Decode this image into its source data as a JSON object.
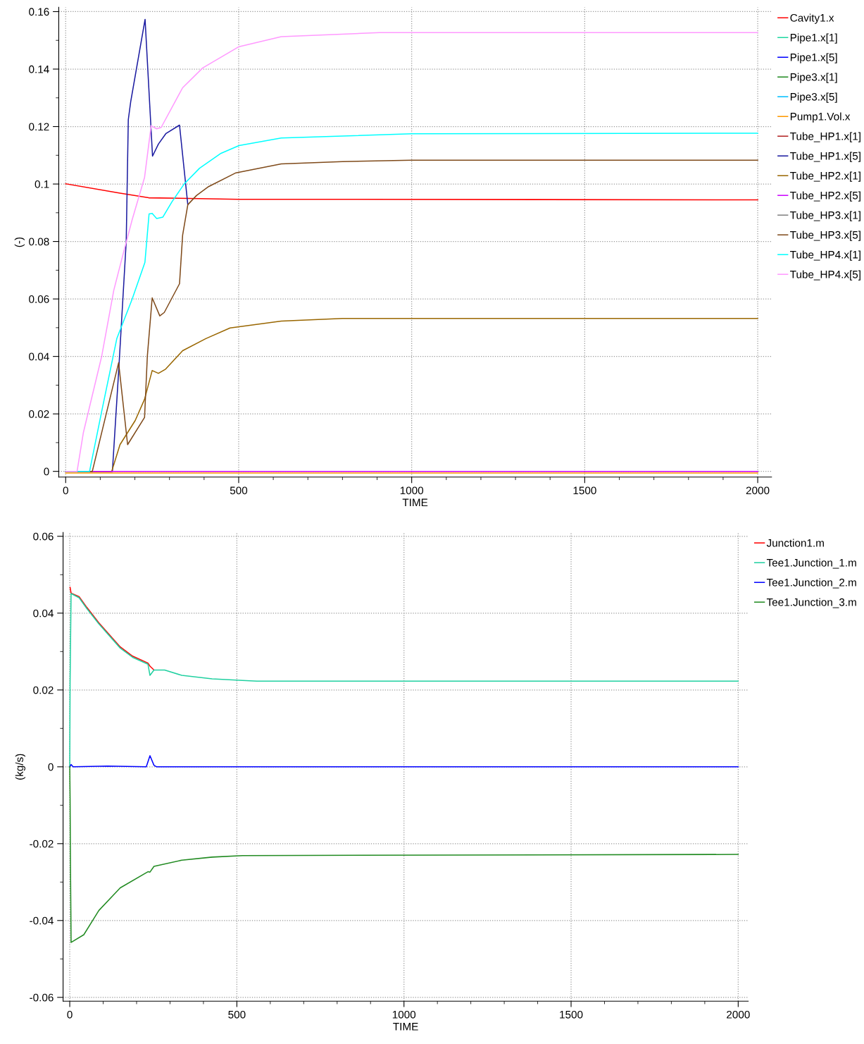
{
  "chart_data": [
    {
      "type": "line",
      "ylabel": "(-)",
      "xlabel": "TIME",
      "xlim": [
        -20,
        2040
      ],
      "ylim": [
        -0.002,
        0.1615
      ],
      "xticks": [
        0,
        500,
        1000,
        1500,
        2000
      ],
      "yticks": [
        0,
        0.02,
        0.04,
        0.06,
        0.08,
        0.1,
        0.12,
        0.14,
        0.16
      ],
      "grid": true,
      "legend": "right",
      "line_style": "solid",
      "marker": "none",
      "series": [
        {
          "name": "Cavity1.x",
          "color": "#ff0000",
          "x": [
            0,
            157,
            240,
            501,
            2000
          ],
          "values": [
            0.1001,
            0.0968,
            0.0952,
            0.0947,
            0.0945
          ]
        },
        {
          "name": "Pipe1.x[1]",
          "color": "#1ed7a0"
        },
        {
          "name": "Pipe1.x[5]",
          "color": "#0000ff"
        },
        {
          "name": "Pipe3.x[1]",
          "color": "#228b22"
        },
        {
          "name": "Pipe3.x[5]",
          "color": "#00bfff"
        },
        {
          "name": "Pump1.Vol.x",
          "color": "#ff9900",
          "x": [
            0,
            2000
          ],
          "values": [
            -0.0006,
            -0.0006
          ]
        },
        {
          "name": "Tube_HP1.x[1]",
          "color": "#b22222"
        },
        {
          "name": "Tube_HP1.x[5]",
          "color": "#1a1aa0",
          "x": [
            0,
            135,
            153,
            175,
            181,
            188,
            229.5,
            251,
            268,
            290,
            329,
            353
          ],
          "values": [
            0,
            0,
            0.0346,
            0.08,
            0.1224,
            0.1287,
            0.1573,
            0.1097,
            0.1139,
            0.1176,
            0.1205,
            0.0928
          ]
        },
        {
          "name": "Tube_HP2.x[1]",
          "color": "#996600",
          "x": [
            0,
            133,
            157,
            201,
            228,
            250,
            268,
            289,
            338,
            405,
            475,
            623,
            800,
            2000
          ],
          "values": [
            0,
            0,
            0.0093,
            0.0177,
            0.0251,
            0.0351,
            0.0341,
            0.0356,
            0.042,
            0.0462,
            0.0499,
            0.0523,
            0.0532,
            0.0532
          ]
        },
        {
          "name": "Tube_HP2.x[5]",
          "color": "#cc00ff",
          "x": [
            0,
            2000
          ],
          "values": [
            0,
            0
          ]
        },
        {
          "name": "Tube_HP3.x[1]",
          "color": "#808080"
        },
        {
          "name": "Tube_HP3.x[5]",
          "color": "#7f4a1a",
          "x": [
            0,
            77,
            153,
            179,
            228,
            236,
            250,
            272,
            285,
            329,
            338,
            353,
            378,
            413,
            492,
            623,
            800,
            1000,
            2000
          ],
          "values": [
            0,
            0,
            0.0378,
            0.0093,
            0.0188,
            0.04,
            0.0604,
            0.0541,
            0.0553,
            0.0653,
            0.0822,
            0.0928,
            0.096,
            0.0991,
            0.1039,
            0.107,
            0.1078,
            0.1083,
            0.1083
          ]
        },
        {
          "name": "Tube_HP4.x[1]",
          "color": "#00ffff",
          "x": [
            0,
            69,
            104,
            148,
            192,
            229,
            241,
            250,
            263,
            281,
            307,
            343,
            387,
            449,
            501,
            623,
            1000,
            2000
          ],
          "values": [
            0,
            0,
            0.0208,
            0.0463,
            0.0599,
            0.0727,
            0.0896,
            0.0898,
            0.088,
            0.0885,
            0.0938,
            0.1001,
            0.1055,
            0.1107,
            0.1134,
            0.116,
            0.1175,
            0.1177
          ]
        },
        {
          "name": "Tube_HP4.x[5]",
          "color": "#ff99ff",
          "x": [
            0,
            33,
            51,
            104,
            139,
            162,
            192,
            228,
            247,
            263,
            276,
            338,
            396,
            501,
            623,
            907,
            2000
          ],
          "values": [
            0,
            0,
            0.0134,
            0.04,
            0.063,
            0.0738,
            0.0875,
            0.1023,
            0.1203,
            0.1192,
            0.1197,
            0.1335,
            0.1404,
            0.1478,
            0.1513,
            0.1527,
            0.1527
          ]
        }
      ]
    },
    {
      "type": "line",
      "ylabel": "(kg/s)",
      "xlabel": "TIME",
      "xlim": [
        -20,
        2030
      ],
      "ylim": [
        -0.061,
        0.061
      ],
      "xticks": [
        0,
        500,
        1000,
        1500,
        2000
      ],
      "yticks": [
        -0.06,
        -0.04,
        -0.02,
        0,
        0.02,
        0.04,
        0.06
      ],
      "grid": true,
      "legend": "right",
      "line_style": "solid",
      "marker": "none",
      "series": [
        {
          "name": "Junction1.m",
          "color": "#ff0000",
          "x": [
            1,
            4,
            28,
            51,
            87,
            151,
            188,
            234,
            240,
            252
          ],
          "values": [
            0.0467,
            0.0452,
            0.0443,
            0.0415,
            0.0375,
            0.0312,
            0.0288,
            0.027,
            0.0262,
            0.0252
          ]
        },
        {
          "name": "Tee1.Junction_1.m",
          "color": "#20d0a0",
          "x": [
            0,
            1,
            4,
            28,
            51,
            87,
            151,
            188,
            234,
            240,
            252,
            284,
            335,
            426,
            517,
            560,
            2000
          ],
          "values": [
            0,
            0.0221,
            0.0451,
            0.044,
            0.0412,
            0.0372,
            0.0309,
            0.0285,
            0.0267,
            0.0238,
            0.0252,
            0.0252,
            0.0238,
            0.0229,
            0.0225,
            0.0223,
            0.0223
          ]
        },
        {
          "name": "Tee1.Junction_2.m",
          "color": "#0000ff",
          "x": [
            0,
            4,
            10,
            113,
            229,
            240,
            252,
            260,
            2000
          ],
          "values": [
            0,
            0.0006,
            0,
            0.0002,
            0,
            0.0029,
            0.0004,
            0,
            0
          ]
        },
        {
          "name": "Tee1.Junction_3.m",
          "color": "#228b22",
          "x": [
            0,
            1,
            2,
            4,
            42,
            87,
            151,
            234,
            240,
            252,
            335,
            426,
            517,
            2000
          ],
          "values": [
            0,
            -0.0081,
            -0.0231,
            -0.0457,
            -0.0437,
            -0.0374,
            -0.0315,
            -0.0273,
            -0.0274,
            -0.0259,
            -0.0243,
            -0.0235,
            -0.0231,
            -0.0228
          ]
        }
      ]
    }
  ]
}
